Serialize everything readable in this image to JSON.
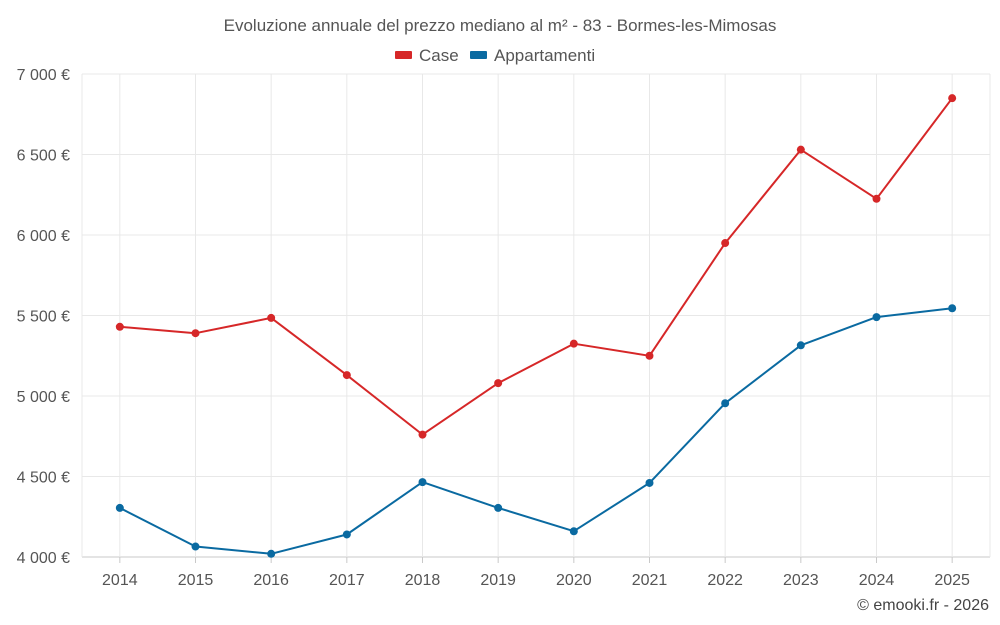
{
  "chart_data": {
    "type": "line",
    "title": "Evoluzione annuale del prezzo mediano al m² - 83 - Bormes-les-Mimosas",
    "categories": [
      "2014",
      "2015",
      "2016",
      "2017",
      "2018",
      "2019",
      "2020",
      "2021",
      "2022",
      "2023",
      "2024",
      "2025"
    ],
    "series": [
      {
        "name": "Case",
        "color": "#d62728",
        "values": [
          5430,
          5390,
          5485,
          5130,
          4760,
          5080,
          5325,
          5250,
          5950,
          6530,
          6225,
          6850
        ]
      },
      {
        "name": "Appartamenti",
        "color": "#0a6aa1",
        "values": [
          4305,
          4065,
          4020,
          4140,
          4465,
          4305,
          4160,
          4460,
          4955,
          5315,
          5490,
          5545
        ]
      }
    ],
    "ylim": [
      4000,
      7000
    ],
    "yticks": [
      {
        "value": 4000,
        "label": "4 000 €"
      },
      {
        "value": 4500,
        "label": "4 500 €"
      },
      {
        "value": 5000,
        "label": "5 000 €"
      },
      {
        "value": 5500,
        "label": "5 500 €"
      },
      {
        "value": 6000,
        "label": "6 000 €"
      },
      {
        "value": 6500,
        "label": "6 500 €"
      },
      {
        "value": 7000,
        "label": "7 000 €"
      }
    ],
    "xlabel": "",
    "ylabel": "",
    "legend": "top-center",
    "grid": true,
    "credit": "© emooki.fr - 2026"
  }
}
